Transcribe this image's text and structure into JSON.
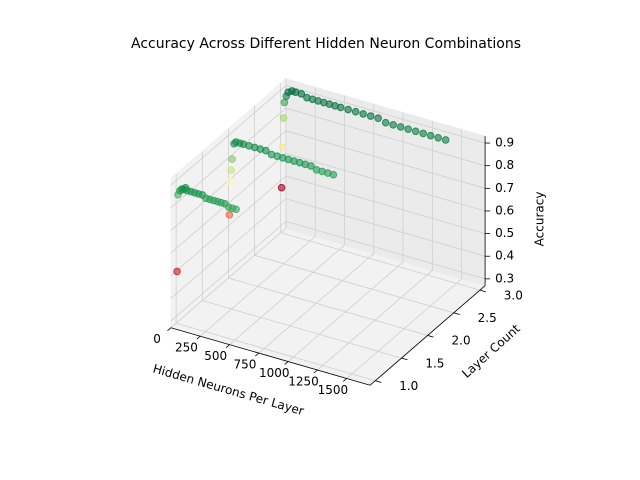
{
  "chart_data": {
    "type": "scatter3d",
    "title": "Accuracy Across Different Hidden Neuron Combinations",
    "xlabel": "Hidden Neurons Per Layer",
    "ylabel": "Layer Count",
    "zlabel": "Accuracy",
    "colormap": "RdYlGn",
    "x": [
      8,
      16,
      32,
      48,
      64,
      80,
      96,
      128,
      160,
      192,
      224,
      256,
      288,
      320,
      352,
      384,
      416,
      448,
      480,
      512,
      8,
      16,
      24,
      32,
      48,
      64,
      96,
      128,
      176,
      224,
      272,
      320,
      368,
      416,
      464,
      512,
      560,
      608,
      656,
      704,
      752,
      800,
      848,
      896,
      8,
      16,
      24,
      32,
      48,
      64,
      96,
      128,
      176,
      224,
      272,
      320,
      368,
      416,
      464,
      512,
      576,
      640,
      704,
      768,
      832,
      896,
      960,
      1024,
      1088,
      1152,
      1216,
      1280,
      1344,
      1408
    ],
    "y": [
      1,
      1,
      1,
      1,
      1,
      1,
      1,
      1,
      1,
      1,
      1,
      1,
      1,
      1,
      1,
      1,
      1,
      1,
      1,
      1,
      2,
      2,
      2,
      2,
      2,
      2,
      2,
      2,
      2,
      2,
      2,
      2,
      2,
      2,
      2,
      2,
      2,
      2,
      2,
      2,
      2,
      2,
      2,
      2,
      3,
      3,
      3,
      3,
      3,
      3,
      3,
      3,
      3,
      3,
      3,
      3,
      3,
      3,
      3,
      3,
      3,
      3,
      3,
      3,
      3,
      3,
      3,
      3,
      3,
      3,
      3,
      3,
      3,
      3
    ],
    "z": [
      0.5,
      0.84,
      0.86,
      0.87,
      0.87,
      0.88,
      0.87,
      0.87,
      0.87,
      0.87,
      0.87,
      0.86,
      0.86,
      0.86,
      0.86,
      0.86,
      0.86,
      0.85,
      0.85,
      0.85,
      0.55,
      0.7,
      0.75,
      0.8,
      0.87,
      0.88,
      0.88,
      0.88,
      0.88,
      0.88,
      0.88,
      0.88,
      0.87,
      0.87,
      0.87,
      0.87,
      0.87,
      0.87,
      0.87,
      0.87,
      0.86,
      0.86,
      0.86,
      0.86,
      0.47,
      0.65,
      0.78,
      0.85,
      0.88,
      0.9,
      0.91,
      0.91,
      0.91,
      0.9,
      0.9,
      0.9,
      0.9,
      0.9,
      0.9,
      0.9,
      0.9,
      0.9,
      0.9,
      0.9,
      0.9,
      0.89,
      0.89,
      0.89,
      0.89,
      0.89,
      0.89,
      0.89,
      0.89,
      0.89
    ],
    "xlim": [
      0,
      1700
    ],
    "xticks": [
      0,
      250,
      500,
      750,
      1000,
      1250,
      1500
    ],
    "ylim": [
      0.9,
      3.1
    ],
    "yticks": [
      {
        "value": 1,
        "label": "1.0"
      },
      1.5,
      {
        "value": 2,
        "label": "2.0"
      },
      2.5,
      {
        "value": 3,
        "label": "3.0"
      }
    ],
    "zlim": [
      0.27,
      0.93
    ],
    "zticks": [
      0.3,
      0.4,
      0.5,
      0.6,
      0.7,
      0.8,
      0.9
    ],
    "grid": true
  }
}
